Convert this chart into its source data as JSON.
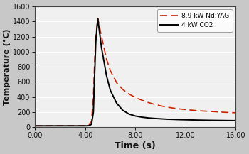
{
  "title": "",
  "xlabel": "Time (s)",
  "ylabel": "Temperature (°C)",
  "xlim": [
    0.0,
    16.0
  ],
  "ylim": [
    0,
    1600
  ],
  "xticks": [
    0.0,
    4.0,
    8.0,
    12.0,
    16.0
  ],
  "yticks": [
    0,
    200,
    400,
    600,
    800,
    1000,
    1200,
    1400,
    1600
  ],
  "xtick_labels": [
    "0.00",
    "4.00",
    "8.00",
    "12.00",
    "16.00"
  ],
  "legend_labels": [
    "8.9 kW Nd:YAG",
    "4 kW CO2"
  ],
  "nd_yag_color": "#cc2200",
  "co2_color": "#000000",
  "plot_bg_color": "#f0f0f0",
  "fig_bg_color": "#c8c8c8",
  "grid_color": "#ffffff",
  "nd_yag_x": [
    0.0,
    4.0,
    4.3,
    4.5,
    4.65,
    4.75,
    4.85,
    5.0,
    5.3,
    5.7,
    6.0,
    6.5,
    7.0,
    7.5,
    8.0,
    8.5,
    9.0,
    9.5,
    10.0,
    10.5,
    11.0,
    11.5,
    12.0,
    13.0,
    14.0,
    15.0,
    16.0
  ],
  "nd_yag_y": [
    20,
    22,
    28,
    80,
    400,
    900,
    1200,
    1440,
    1200,
    900,
    750,
    590,
    500,
    440,
    395,
    360,
    330,
    305,
    285,
    268,
    255,
    244,
    235,
    220,
    210,
    200,
    193
  ],
  "co2_x": [
    0.0,
    4.0,
    4.3,
    4.5,
    4.65,
    4.75,
    4.85,
    5.0,
    5.3,
    5.7,
    6.0,
    6.5,
    7.0,
    7.5,
    8.0,
    8.5,
    9.0,
    9.5,
    10.0,
    10.5,
    11.0,
    11.5,
    12.0,
    13.0,
    14.0,
    15.0,
    16.0
  ],
  "co2_y": [
    20,
    20,
    22,
    40,
    200,
    700,
    1150,
    1440,
    1050,
    680,
    490,
    320,
    225,
    175,
    150,
    135,
    125,
    118,
    113,
    108,
    105,
    102,
    100,
    96,
    93,
    91,
    89
  ]
}
